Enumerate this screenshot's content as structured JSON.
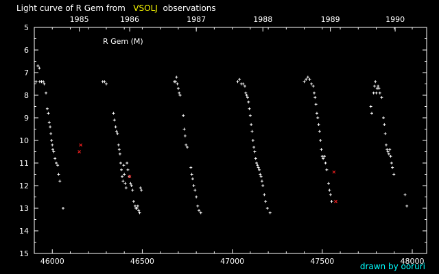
{
  "title": {
    "prefix": "Light curve of R Gem from",
    "source": "VSOLJ",
    "suffix": "observations"
  },
  "credit": "drawn by ooruri",
  "colors": {
    "background": "#000000",
    "axes": "#ffffff",
    "visual_points": "#ffffff",
    "other_points": "#ff2020",
    "source_highlight": "#ffff00",
    "credit": "#00ffff"
  },
  "chart_data": {
    "type": "scatter",
    "title": "Light curve of R Gem from VSOLJ observations",
    "plot_label": "R Gem (M)",
    "x_axis": {
      "label": "",
      "range": [
        45900,
        48080
      ],
      "ticks": [
        46000,
        46500,
        47000,
        47500,
        48000
      ],
      "tick_labels": [
        "46000",
        "46500",
        "47000",
        "47500",
        "48000"
      ]
    },
    "top_axis": {
      "ticks": [
        1985,
        1986,
        1987,
        1988,
        1989,
        1990
      ],
      "tick_labels": [
        "1985",
        "1986",
        "1987",
        "1988",
        "1989",
        "1990"
      ],
      "tick_x": [
        46150,
        46430,
        46800,
        47170,
        47545,
        47905
      ]
    },
    "y_axis": {
      "label": "",
      "range": [
        15,
        5
      ],
      "inverted": true,
      "ticks": [
        5,
        6,
        7,
        8,
        9,
        10,
        11,
        12,
        13,
        14,
        15
      ],
      "tick_labels": [
        "5",
        "6",
        "7",
        "8",
        "9",
        "10",
        "11",
        "12",
        "13",
        "14",
        "15"
      ]
    },
    "grid": false,
    "series": [
      {
        "marker": "+",
        "color": "#ffffff",
        "points": [
          [
            45910,
            7.4
          ],
          [
            45920,
            6.7
          ],
          [
            45928,
            6.8
          ],
          [
            45930,
            7.4
          ],
          [
            45940,
            7.4
          ],
          [
            45950,
            7.4
          ],
          [
            45955,
            7.5
          ],
          [
            45965,
            7.9
          ],
          [
            45972,
            8.6
          ],
          [
            45978,
            8.8
          ],
          [
            45983,
            9.2
          ],
          [
            45988,
            9.4
          ],
          [
            45992,
            9.7
          ],
          [
            45996,
            10.0
          ],
          [
            46000,
            10.2
          ],
          [
            46003,
            10.4
          ],
          [
            46008,
            10.5
          ],
          [
            46015,
            10.8
          ],
          [
            46022,
            11.0
          ],
          [
            46030,
            11.1
          ],
          [
            46035,
            11.5
          ],
          [
            46042,
            11.8
          ],
          [
            46060,
            13.0
          ],
          [
            46280,
            7.4
          ],
          [
            46290,
            7.4
          ],
          [
            46300,
            7.5
          ],
          [
            46340,
            8.8
          ],
          [
            46345,
            9.1
          ],
          [
            46352,
            9.4
          ],
          [
            46357,
            9.6
          ],
          [
            46362,
            9.7
          ],
          [
            46368,
            10.2
          ],
          [
            46372,
            10.4
          ],
          [
            46376,
            10.6
          ],
          [
            46380,
            11.0
          ],
          [
            46384,
            11.3
          ],
          [
            46388,
            11.6
          ],
          [
            46393,
            11.8
          ],
          [
            46397,
            11.1
          ],
          [
            46400,
            11.5
          ],
          [
            46405,
            11.9
          ],
          [
            46410,
            12.1
          ],
          [
            46415,
            11.0
          ],
          [
            46420,
            11.3
          ],
          [
            46428,
            11.6
          ],
          [
            46435,
            11.9
          ],
          [
            46440,
            12.0
          ],
          [
            46446,
            12.2
          ],
          [
            46452,
            12.7
          ],
          [
            46460,
            12.9
          ],
          [
            46465,
            13.0
          ],
          [
            46470,
            13.0
          ],
          [
            46475,
            12.9
          ],
          [
            46480,
            13.1
          ],
          [
            46485,
            13.2
          ],
          [
            46490,
            12.1
          ],
          [
            46495,
            12.2
          ],
          [
            46678,
            7.4
          ],
          [
            46685,
            7.4
          ],
          [
            46690,
            7.2
          ],
          [
            46695,
            7.5
          ],
          [
            46700,
            7.7
          ],
          [
            46705,
            7.9
          ],
          [
            46710,
            8.0
          ],
          [
            46728,
            8.9
          ],
          [
            46733,
            9.5
          ],
          [
            46738,
            9.8
          ],
          [
            46743,
            10.2
          ],
          [
            46750,
            10.3
          ],
          [
            46770,
            11.2
          ],
          [
            46775,
            11.5
          ],
          [
            46780,
            11.7
          ],
          [
            46786,
            12.0
          ],
          [
            46793,
            12.2
          ],
          [
            46800,
            12.5
          ],
          [
            46808,
            12.9
          ],
          [
            46815,
            13.1
          ],
          [
            46825,
            13.2
          ],
          [
            47030,
            7.4
          ],
          [
            47040,
            7.3
          ],
          [
            47050,
            7.5
          ],
          [
            47060,
            7.5
          ],
          [
            47070,
            7.6
          ],
          [
            47075,
            7.9
          ],
          [
            47080,
            8.0
          ],
          [
            47085,
            8.1
          ],
          [
            47090,
            8.3
          ],
          [
            47095,
            8.6
          ],
          [
            47100,
            8.9
          ],
          [
            47105,
            9.3
          ],
          [
            47110,
            9.6
          ],
          [
            47115,
            10.0
          ],
          [
            47120,
            10.3
          ],
          [
            47125,
            10.5
          ],
          [
            47130,
            10.8
          ],
          [
            47135,
            11.0
          ],
          [
            47140,
            11.1
          ],
          [
            47145,
            11.2
          ],
          [
            47150,
            11.3
          ],
          [
            47155,
            11.5
          ],
          [
            47160,
            11.6
          ],
          [
            47165,
            11.8
          ],
          [
            47170,
            12.0
          ],
          [
            47178,
            12.4
          ],
          [
            47185,
            12.7
          ],
          [
            47195,
            13.0
          ],
          [
            47210,
            13.2
          ],
          [
            47400,
            7.4
          ],
          [
            47410,
            7.3
          ],
          [
            47420,
            7.2
          ],
          [
            47430,
            7.3
          ],
          [
            47440,
            7.5
          ],
          [
            47450,
            7.6
          ],
          [
            47455,
            7.9
          ],
          [
            47460,
            8.1
          ],
          [
            47465,
            8.4
          ],
          [
            47470,
            8.8
          ],
          [
            47475,
            9.0
          ],
          [
            47480,
            9.3
          ],
          [
            47485,
            9.6
          ],
          [
            47490,
            10.0
          ],
          [
            47495,
            10.4
          ],
          [
            47500,
            10.7
          ],
          [
            47505,
            10.8
          ],
          [
            47512,
            10.7
          ],
          [
            47518,
            11.0
          ],
          [
            47525,
            11.3
          ],
          [
            47535,
            11.9
          ],
          [
            47540,
            12.2
          ],
          [
            47546,
            12.4
          ],
          [
            47552,
            12.7
          ],
          [
            47770,
            8.5
          ],
          [
            47775,
            8.8
          ],
          [
            47785,
            7.9
          ],
          [
            47790,
            7.6
          ],
          [
            47795,
            7.4
          ],
          [
            47800,
            7.9
          ],
          [
            47805,
            7.7
          ],
          [
            47810,
            7.6
          ],
          [
            47815,
            7.7
          ],
          [
            47820,
            7.9
          ],
          [
            47830,
            8.1
          ],
          [
            47840,
            9.0
          ],
          [
            47845,
            9.3
          ],
          [
            47850,
            9.7
          ],
          [
            47855,
            10.2
          ],
          [
            47860,
            10.4
          ],
          [
            47865,
            10.5
          ],
          [
            47870,
            10.6
          ],
          [
            47875,
            10.4
          ],
          [
            47880,
            10.7
          ],
          [
            47885,
            11.0
          ],
          [
            47890,
            11.2
          ],
          [
            47898,
            11.5
          ],
          [
            47960,
            12.4
          ],
          [
            47970,
            12.9
          ]
        ]
      },
      {
        "marker": "x",
        "color": "#ff2020",
        "points": [
          [
            46150,
            10.5
          ],
          [
            46158,
            10.2
          ],
          [
            46430,
            11.6
          ],
          [
            47565,
            11.4
          ],
          [
            47575,
            12.7
          ]
        ]
      }
    ]
  }
}
